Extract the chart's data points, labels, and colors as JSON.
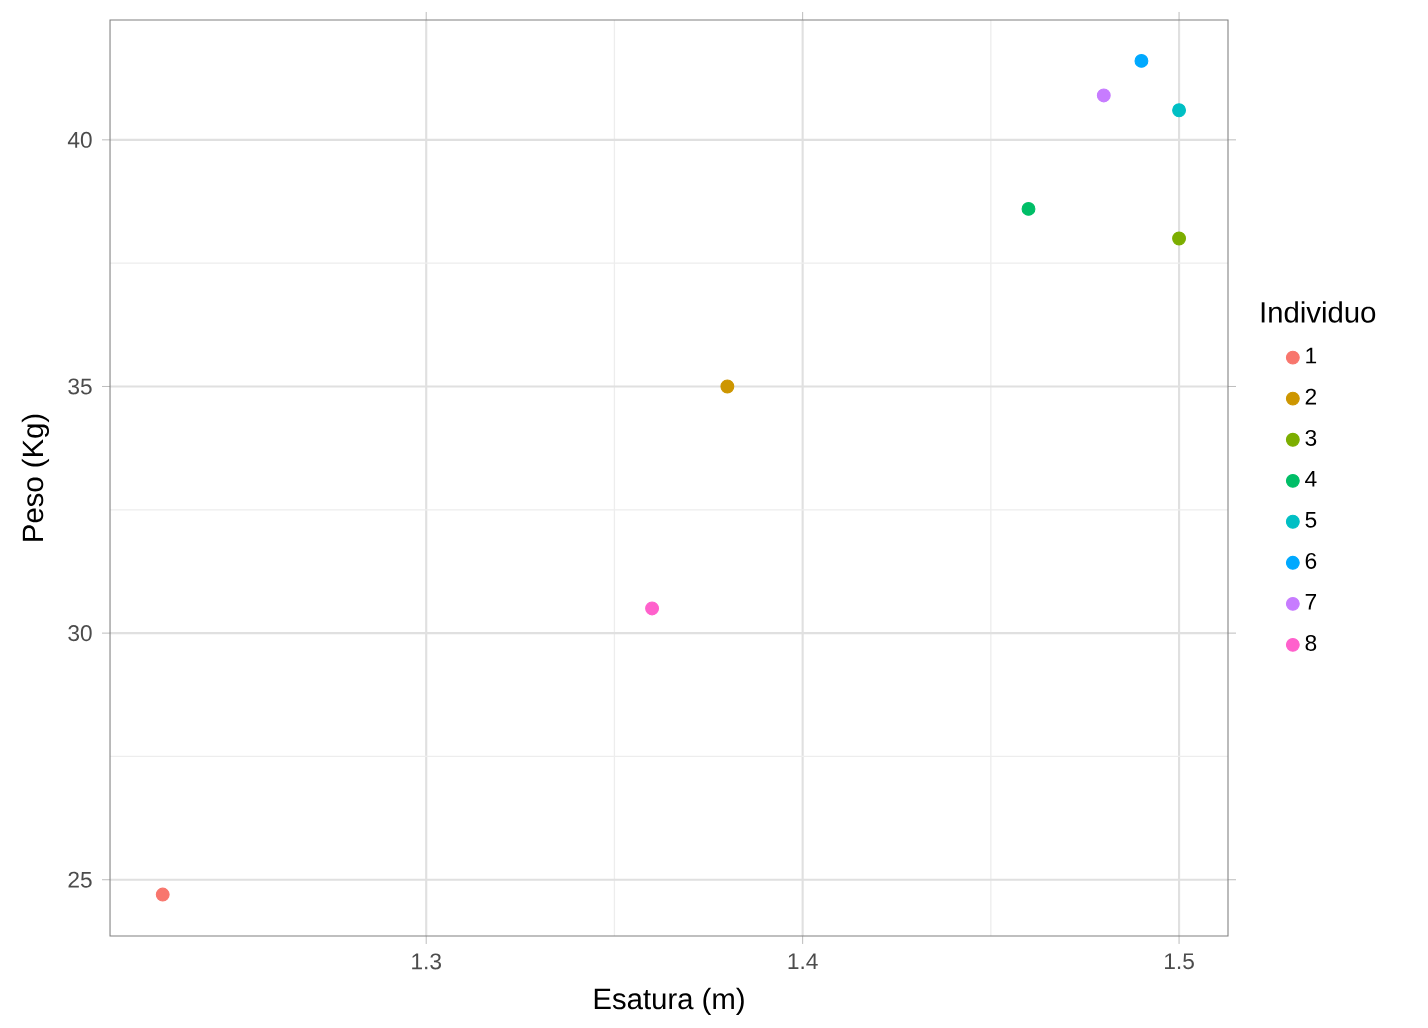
{
  "chart_data": {
    "type": "scatter",
    "xlabel": "Esatura (m)",
    "ylabel": "Peso (Kg)",
    "legend_title": "Individuo",
    "legend": "right",
    "grid": true,
    "xlim": [
      1.216,
      1.513
    ],
    "ylim": [
      23.86,
      42.43
    ],
    "xticks": [
      1.3,
      1.4,
      1.5
    ],
    "yticks": [
      25,
      30,
      35,
      40
    ],
    "series": [
      {
        "name": "1",
        "color": "#F8766D",
        "x": [
          1.23
        ],
        "values": [
          24.7
        ]
      },
      {
        "name": "2",
        "color": "#CD9600",
        "x": [
          1.38
        ],
        "values": [
          35.0
        ]
      },
      {
        "name": "3",
        "color": "#7CAE00",
        "x": [
          1.5
        ],
        "values": [
          38.0
        ]
      },
      {
        "name": "4",
        "color": "#00BE67",
        "x": [
          1.46
        ],
        "values": [
          38.6
        ]
      },
      {
        "name": "5",
        "color": "#00BFC4",
        "x": [
          1.5
        ],
        "values": [
          40.6
        ]
      },
      {
        "name": "6",
        "color": "#00A9FF",
        "x": [
          1.49
        ],
        "values": [
          41.6
        ]
      },
      {
        "name": "7",
        "color": "#C77CFF",
        "x": [
          1.48
        ],
        "values": [
          40.9
        ]
      },
      {
        "name": "8",
        "color": "#FF61CC",
        "x": [
          1.36
        ],
        "values": [
          30.5
        ]
      }
    ]
  }
}
